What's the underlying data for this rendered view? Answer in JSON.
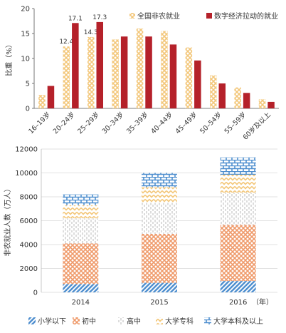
{
  "chart_data": [
    {
      "type": "bar",
      "title": "",
      "ylabel": "比重（%）",
      "xlabel": "",
      "ylim": [
        0,
        20
      ],
      "yticks": [
        0,
        5,
        10,
        15,
        20
      ],
      "grid": false,
      "legend_position": "top-right",
      "categories": [
        "16–19岁",
        "20–24岁",
        "25–29岁",
        "30–34岁",
        "35–39岁",
        "40–44岁",
        "45–49岁",
        "50–54岁",
        "55–59岁",
        "60岁及以上"
      ],
      "series": [
        {
          "name": "全国非农就业",
          "color": "#f3c77a",
          "pattern": "crosshatch",
          "values": [
            2.7,
            12.4,
            14.3,
            13.8,
            16.0,
            15.5,
            12.2,
            6.6,
            4.2,
            1.8
          ],
          "data_labels": [
            "",
            "12.4",
            "14.3",
            "",
            "",
            "",
            "",
            "",
            "",
            ""
          ]
        },
        {
          "name": "数字经济拉动的就业",
          "color": "#b5212a",
          "pattern": "solid",
          "values": [
            4.5,
            17.1,
            17.3,
            14.4,
            14.4,
            12.8,
            9.6,
            5.0,
            3.1,
            1.3
          ],
          "data_labels": [
            "",
            "17.1",
            "17.3",
            "",
            "",
            "",
            "",
            "",
            "",
            ""
          ]
        }
      ]
    },
    {
      "type": "bar",
      "stacked": true,
      "title": "",
      "ylabel": "非农就业人数（万人）",
      "xlabel": "（年）",
      "ylim": [
        0,
        12000
      ],
      "yticks": [
        0,
        2000,
        4000,
        6000,
        8000,
        10000,
        12000
      ],
      "grid": true,
      "legend_position": "bottom",
      "categories": [
        "2014",
        "2015",
        "2016"
      ],
      "series": [
        {
          "name": "小学以下",
          "color": "#4f8fcf",
          "pattern": "diagonal",
          "values": [
            700,
            800,
            950
          ]
        },
        {
          "name": "初中",
          "color": "#ef9a6a",
          "pattern": "crosshatch",
          "values": [
            3400,
            4100,
            4700
          ]
        },
        {
          "name": "高中",
          "color": "#c9c9c9",
          "pattern": "dashed-vertical",
          "values": [
            2100,
            2600,
            2700
          ]
        },
        {
          "name": "大学专科",
          "color": "#f3c77a",
          "pattern": "zigzag",
          "values": [
            1100,
            1300,
            1500
          ]
        },
        {
          "name": "大学本科及以上",
          "color": "#4f8fcf",
          "pattern": "brick",
          "values": [
            900,
            1200,
            1450
          ]
        }
      ]
    }
  ]
}
